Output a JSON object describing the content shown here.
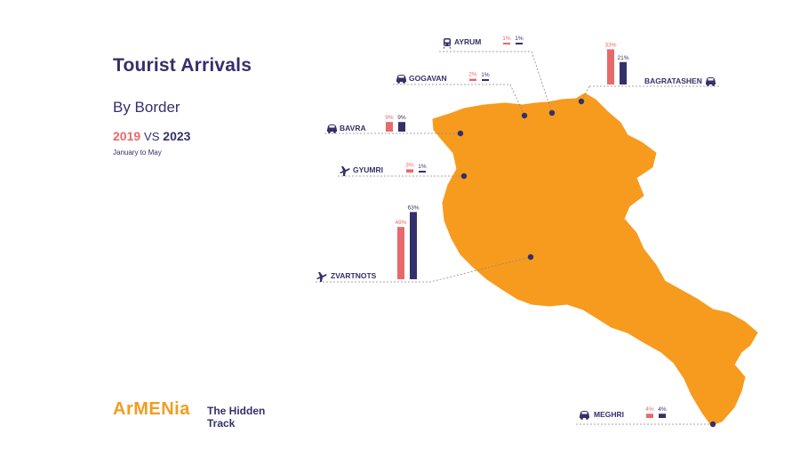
{
  "title": "Tourist Arrivals",
  "subtitle": "By Border",
  "years": {
    "first": "2019",
    "vs": "VS",
    "second": "2023"
  },
  "period": "January to May",
  "brand": {
    "logo": "ArMENia",
    "tagline_line1": "The Hidden",
    "tagline_line2": "Track"
  },
  "colors": {
    "map_fill": "#f79b1f",
    "year_2019": "#e8696b",
    "year_2023": "#34306b",
    "text": "#34306b",
    "leader": "#8a8a8a"
  },
  "chart_data": {
    "type": "bar",
    "title": "Tourist Arrivals",
    "subtitle": "By Border",
    "unit": "%",
    "series": [
      {
        "name": "2019",
        "color": "#e8696b"
      },
      {
        "name": "2023",
        "color": "#34306b"
      }
    ],
    "categories": [
      {
        "name": "AYRUM",
        "icon": "train-icon",
        "values": [
          1,
          1
        ],
        "labels": [
          "1%",
          "1%"
        ]
      },
      {
        "name": "BAGRATASHEN",
        "icon": "car-icon",
        "values": [
          33,
          21
        ],
        "labels": [
          "33%",
          "21%"
        ]
      },
      {
        "name": "GOGAVAN",
        "icon": "car-icon",
        "values": [
          2,
          1
        ],
        "labels": [
          "2%",
          "1%"
        ]
      },
      {
        "name": "BAVRA",
        "icon": "car-icon",
        "values": [
          9,
          9
        ],
        "labels": [
          "9%",
          "9%"
        ]
      },
      {
        "name": "GYUMRI",
        "icon": "plane-icon",
        "values": [
          3,
          1
        ],
        "labels": [
          "3%",
          "1%"
        ]
      },
      {
        "name": "ZVARTNOTS",
        "icon": "plane-icon",
        "values": [
          49,
          63
        ],
        "labels": [
          "49%",
          "63%"
        ]
      },
      {
        "name": "MEGHRI",
        "icon": "car-icon",
        "values": [
          4,
          4
        ],
        "labels": [
          "4%",
          "4%"
        ]
      }
    ]
  }
}
